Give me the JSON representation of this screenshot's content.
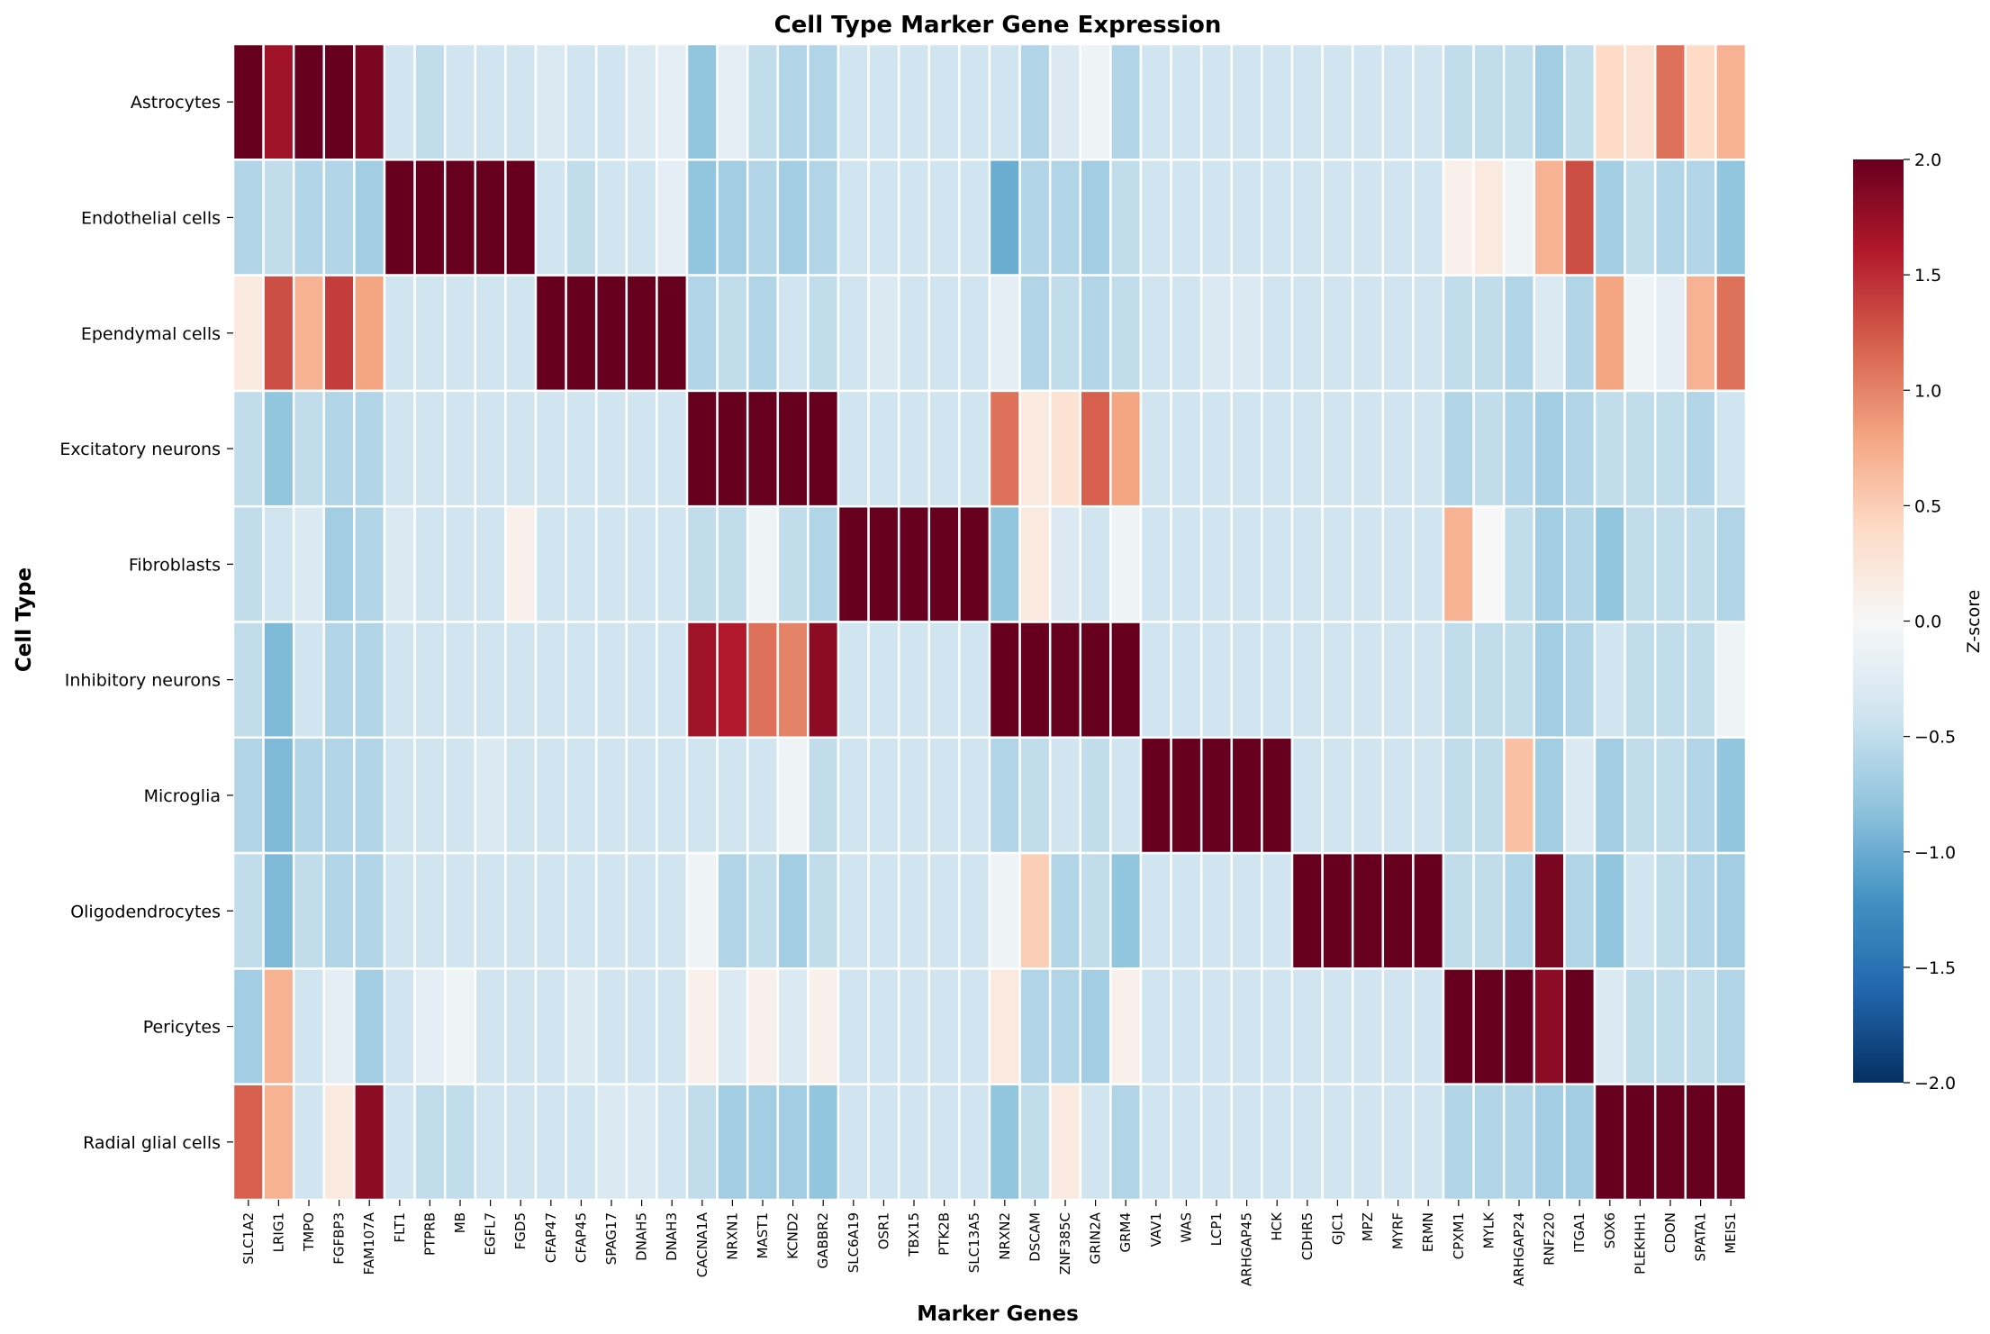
{
  "chart_data": {
    "type": "heatmap",
    "title": "Cell Type Marker Gene Expression",
    "xlabel": "Marker Genes",
    "ylabel": "Cell Type",
    "colorbar_label": "Z-score",
    "colormap": "RdBu_r",
    "vmin": -2.0,
    "vmax": 2.0,
    "colorbar_ticks": [
      "2.0",
      "1.5",
      "1.0",
      "0.5",
      "0.0",
      "−0.5",
      "−1.0",
      "−1.5",
      "−2.0"
    ],
    "colorbar_tick_values": [
      2.0,
      1.5,
      1.0,
      0.5,
      0.0,
      -0.5,
      -1.0,
      -1.5,
      -2.0
    ],
    "rows": [
      "Astrocytes",
      "Endothelial cells",
      "Ependymal cells",
      "Excitatory neurons",
      "Fibroblasts",
      "Inhibitory neurons",
      "Microglia",
      "Oligodendrocytes",
      "Pericytes",
      "Radial glial cells"
    ],
    "columns": [
      "SLC1A2",
      "LRIG1",
      "TMPO",
      "FGFBP3",
      "FAM107A",
      "FLT1",
      "PTPRB",
      "MB",
      "EGFL7",
      "FGD5",
      "CFAP47",
      "CFAP45",
      "SPAG17",
      "DNAH5",
      "DNAH3",
      "CACNA1A",
      "NRXN1",
      "MAST1",
      "KCND2",
      "GABBR2",
      "SLC6A19",
      "OSR1",
      "TBX15",
      "PTK2B",
      "SLC13A5",
      "NRXN2",
      "DSCAM",
      "ZNF385C",
      "GRIN2A",
      "GRM4",
      "VAV1",
      "WAS",
      "LCP1",
      "ARHGAP45",
      "HCK",
      "CDHR5",
      "GJC1",
      "MPZ",
      "MYRF",
      "ERMN",
      "CPXM1",
      "MYLK",
      "ARHGAP24",
      "RNF220",
      "ITGA1",
      "SOX6",
      "PLEKHH1",
      "CDON",
      "SPATA1",
      "MEIS1"
    ],
    "values": [
      [
        2.0,
        1.7,
        2.0,
        2.0,
        1.9,
        -0.4,
        -0.5,
        -0.4,
        -0.4,
        -0.4,
        -0.3,
        -0.4,
        -0.4,
        -0.3,
        -0.2,
        -0.8,
        -0.2,
        -0.5,
        -0.6,
        -0.6,
        -0.4,
        -0.4,
        -0.4,
        -0.4,
        -0.4,
        -0.4,
        -0.6,
        -0.3,
        -0.1,
        -0.6,
        -0.4,
        -0.4,
        -0.4,
        -0.4,
        -0.4,
        -0.4,
        -0.4,
        -0.4,
        -0.4,
        -0.4,
        -0.5,
        -0.5,
        -0.5,
        -0.7,
        -0.5,
        0.4,
        0.3,
        1.1,
        0.4,
        0.7
      ],
      [
        -0.6,
        -0.5,
        -0.6,
        -0.6,
        -0.7,
        2.0,
        2.0,
        2.0,
        2.0,
        2.0,
        -0.4,
        -0.5,
        -0.4,
        -0.4,
        -0.2,
        -0.8,
        -0.7,
        -0.6,
        -0.7,
        -0.6,
        -0.4,
        -0.4,
        -0.4,
        -0.4,
        -0.4,
        -1.0,
        -0.6,
        -0.6,
        -0.7,
        -0.5,
        -0.4,
        -0.4,
        -0.4,
        -0.4,
        -0.4,
        -0.4,
        -0.4,
        -0.4,
        -0.4,
        -0.4,
        0.1,
        0.2,
        -0.1,
        0.7,
        1.3,
        -0.7,
        -0.5,
        -0.6,
        -0.6,
        -0.8
      ],
      [
        0.2,
        1.3,
        0.7,
        1.4,
        0.8,
        -0.4,
        -0.4,
        -0.4,
        -0.4,
        -0.4,
        2.0,
        2.0,
        2.0,
        2.0,
        2.0,
        -0.6,
        -0.5,
        -0.6,
        -0.4,
        -0.5,
        -0.4,
        -0.3,
        -0.4,
        -0.4,
        -0.4,
        -0.2,
        -0.6,
        -0.5,
        -0.6,
        -0.5,
        -0.4,
        -0.4,
        -0.3,
        -0.3,
        -0.4,
        -0.4,
        -0.4,
        -0.4,
        -0.4,
        -0.4,
        -0.5,
        -0.5,
        -0.6,
        -0.3,
        -0.6,
        0.8,
        -0.1,
        -0.2,
        0.7,
        1.1
      ],
      [
        -0.5,
        -0.8,
        -0.5,
        -0.6,
        -0.6,
        -0.4,
        -0.4,
        -0.4,
        -0.4,
        -0.4,
        -0.4,
        -0.4,
        -0.4,
        -0.4,
        -0.4,
        2.0,
        2.0,
        2.0,
        2.0,
        2.0,
        -0.4,
        -0.4,
        -0.4,
        -0.4,
        -0.4,
        1.1,
        0.2,
        0.3,
        1.2,
        0.8,
        -0.4,
        -0.4,
        -0.4,
        -0.4,
        -0.4,
        -0.4,
        -0.4,
        -0.4,
        -0.4,
        -0.4,
        -0.6,
        -0.5,
        -0.6,
        -0.7,
        -0.6,
        -0.5,
        -0.5,
        -0.5,
        -0.6,
        -0.4
      ],
      [
        -0.5,
        -0.4,
        -0.3,
        -0.7,
        -0.6,
        -0.3,
        -0.4,
        -0.4,
        -0.4,
        0.1,
        -0.4,
        -0.4,
        -0.4,
        -0.4,
        -0.4,
        -0.5,
        -0.5,
        -0.1,
        -0.5,
        -0.6,
        2.0,
        2.0,
        2.0,
        2.0,
        2.0,
        -0.8,
        0.2,
        -0.3,
        -0.4,
        -0.1,
        -0.4,
        -0.4,
        -0.4,
        -0.4,
        -0.4,
        -0.4,
        -0.4,
        -0.4,
        -0.4,
        -0.4,
        0.7,
        0.0,
        -0.5,
        -0.7,
        -0.6,
        -0.8,
        -0.5,
        -0.5,
        -0.5,
        -0.6
      ],
      [
        -0.5,
        -0.9,
        -0.4,
        -0.6,
        -0.6,
        -0.4,
        -0.4,
        -0.4,
        -0.4,
        -0.4,
        -0.4,
        -0.4,
        -0.4,
        -0.4,
        -0.4,
        1.7,
        1.6,
        1.1,
        1.0,
        1.8,
        -0.4,
        -0.4,
        -0.4,
        -0.4,
        -0.4,
        2.0,
        2.0,
        2.0,
        2.0,
        2.0,
        -0.4,
        -0.4,
        -0.4,
        -0.4,
        -0.4,
        -0.4,
        -0.4,
        -0.4,
        -0.4,
        -0.4,
        -0.5,
        -0.5,
        -0.5,
        -0.7,
        -0.6,
        -0.4,
        -0.5,
        -0.5,
        -0.5,
        -0.1
      ],
      [
        -0.6,
        -0.9,
        -0.6,
        -0.6,
        -0.6,
        -0.4,
        -0.4,
        -0.4,
        -0.3,
        -0.4,
        -0.4,
        -0.4,
        -0.4,
        -0.4,
        -0.4,
        -0.4,
        -0.4,
        -0.4,
        -0.1,
        -0.5,
        -0.4,
        -0.4,
        -0.4,
        -0.4,
        -0.4,
        -0.6,
        -0.5,
        -0.4,
        -0.5,
        -0.4,
        2.0,
        2.0,
        2.0,
        2.0,
        2.0,
        -0.4,
        -0.4,
        -0.4,
        -0.4,
        -0.4,
        -0.5,
        -0.5,
        0.6,
        -0.7,
        -0.3,
        -0.7,
        -0.5,
        -0.5,
        -0.6,
        -0.8
      ],
      [
        -0.5,
        -0.9,
        -0.5,
        -0.6,
        -0.6,
        -0.4,
        -0.4,
        -0.4,
        -0.4,
        -0.4,
        -0.4,
        -0.4,
        -0.4,
        -0.4,
        -0.4,
        -0.1,
        -0.6,
        -0.5,
        -0.7,
        -0.5,
        -0.4,
        -0.4,
        -0.4,
        -0.4,
        -0.4,
        -0.1,
        0.5,
        -0.6,
        -0.5,
        -0.8,
        -0.4,
        -0.4,
        -0.4,
        -0.4,
        -0.4,
        2.0,
        2.0,
        2.0,
        2.0,
        2.0,
        -0.5,
        -0.5,
        -0.6,
        1.9,
        -0.6,
        -0.8,
        -0.4,
        -0.5,
        -0.6,
        -0.7
      ],
      [
        -0.7,
        0.7,
        -0.4,
        -0.2,
        -0.7,
        -0.4,
        -0.2,
        -0.1,
        -0.4,
        -0.4,
        -0.4,
        -0.3,
        -0.4,
        -0.4,
        -0.4,
        0.1,
        -0.3,
        0.1,
        -0.3,
        0.1,
        -0.4,
        -0.4,
        -0.4,
        -0.4,
        -0.4,
        0.2,
        -0.6,
        -0.6,
        -0.7,
        0.1,
        -0.4,
        -0.4,
        -0.4,
        -0.4,
        -0.4,
        -0.4,
        -0.4,
        -0.4,
        -0.4,
        -0.4,
        2.0,
        2.0,
        2.0,
        1.8,
        2.0,
        -0.3,
        -0.5,
        -0.5,
        -0.5,
        -0.6
      ],
      [
        1.2,
        0.7,
        -0.4,
        0.2,
        1.8,
        -0.4,
        -0.5,
        -0.5,
        -0.4,
        -0.4,
        -0.4,
        -0.4,
        -0.3,
        -0.3,
        -0.4,
        -0.5,
        -0.7,
        -0.7,
        -0.7,
        -0.8,
        -0.4,
        -0.4,
        -0.4,
        -0.4,
        -0.4,
        -0.8,
        -0.5,
        0.2,
        -0.4,
        -0.6,
        -0.4,
        -0.4,
        -0.4,
        -0.4,
        -0.4,
        -0.4,
        -0.4,
        -0.4,
        -0.4,
        -0.4,
        -0.6,
        -0.6,
        -0.6,
        -0.7,
        -0.7,
        2.0,
        2.0,
        2.0,
        2.0,
        2.0
      ]
    ]
  }
}
